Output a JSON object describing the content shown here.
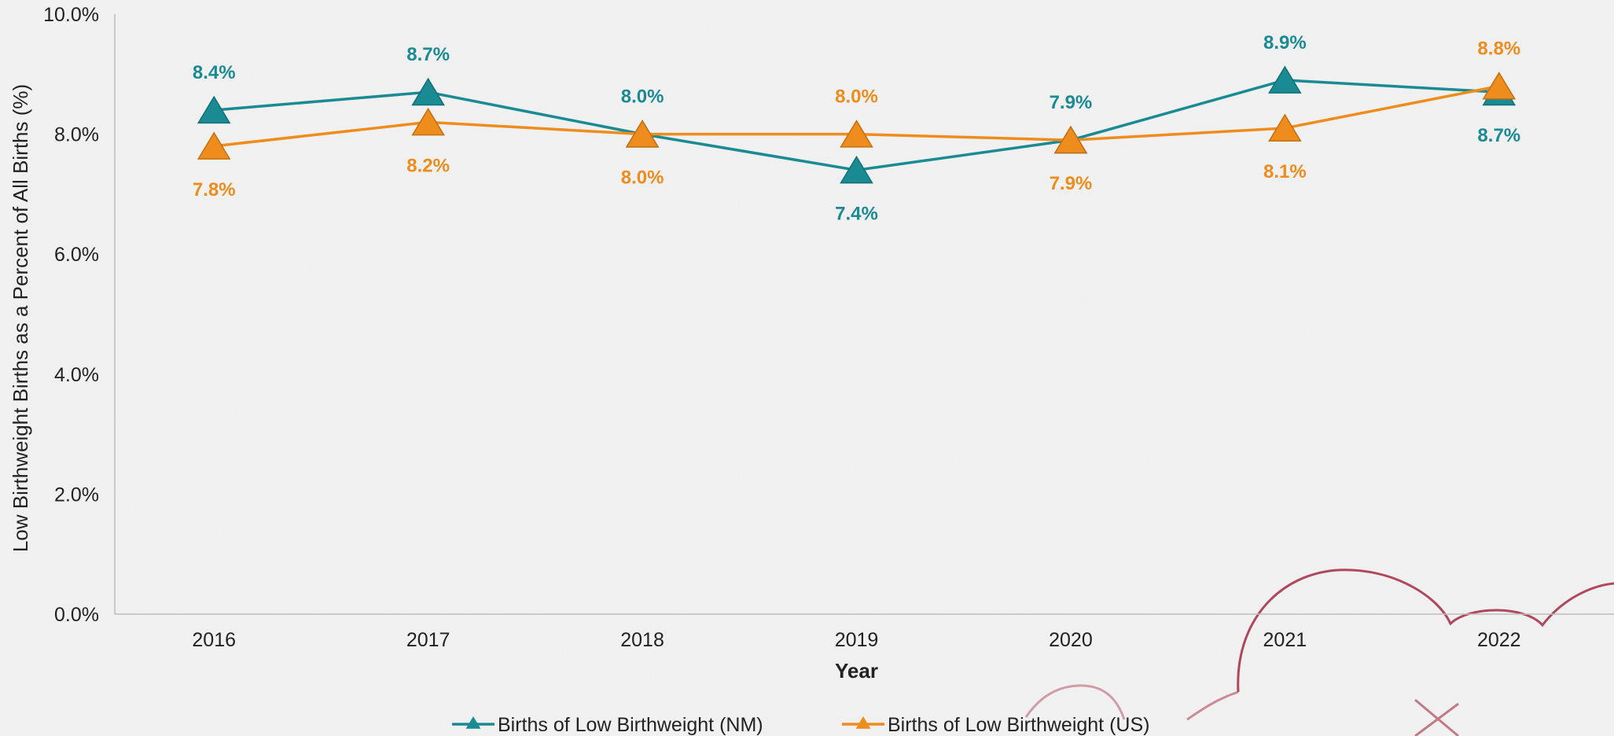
{
  "chart_data": {
    "type": "line",
    "xlabel": "Year",
    "ylabel": "Low Birthweight Births as a Percent of All Births (%)",
    "categories": [
      "2016",
      "2017",
      "2018",
      "2019",
      "2020",
      "2021",
      "2022"
    ],
    "ylim": [
      0,
      10
    ],
    "yticks": [
      0,
      2,
      4,
      6,
      8,
      10
    ],
    "ytick_labels": [
      "0.0%",
      "2.0%",
      "4.0%",
      "6.0%",
      "8.0%",
      "10.0%"
    ],
    "grid": false,
    "legend_position": "bottom",
    "series": [
      {
        "name": "Births of Low Birthweight (NM)",
        "color": "#1a8a93",
        "marker": "triangle",
        "values": [
          8.4,
          8.7,
          8.0,
          7.4,
          7.9,
          8.9,
          8.7
        ],
        "labels": [
          "8.4%",
          "8.7%",
          "8.0%",
          "7.4%",
          "7.9%",
          "8.9%",
          "8.7%"
        ]
      },
      {
        "name": "Births of Low Birthweight (US)",
        "color": "#ee8c1d",
        "marker": "triangle",
        "values": [
          7.8,
          8.2,
          8.0,
          8.0,
          7.9,
          8.1,
          8.8
        ],
        "labels": [
          "7.8%",
          "8.2%",
          "8.0%",
          "8.0%",
          "7.9%",
          "8.1%",
          "8.8%"
        ]
      }
    ]
  }
}
